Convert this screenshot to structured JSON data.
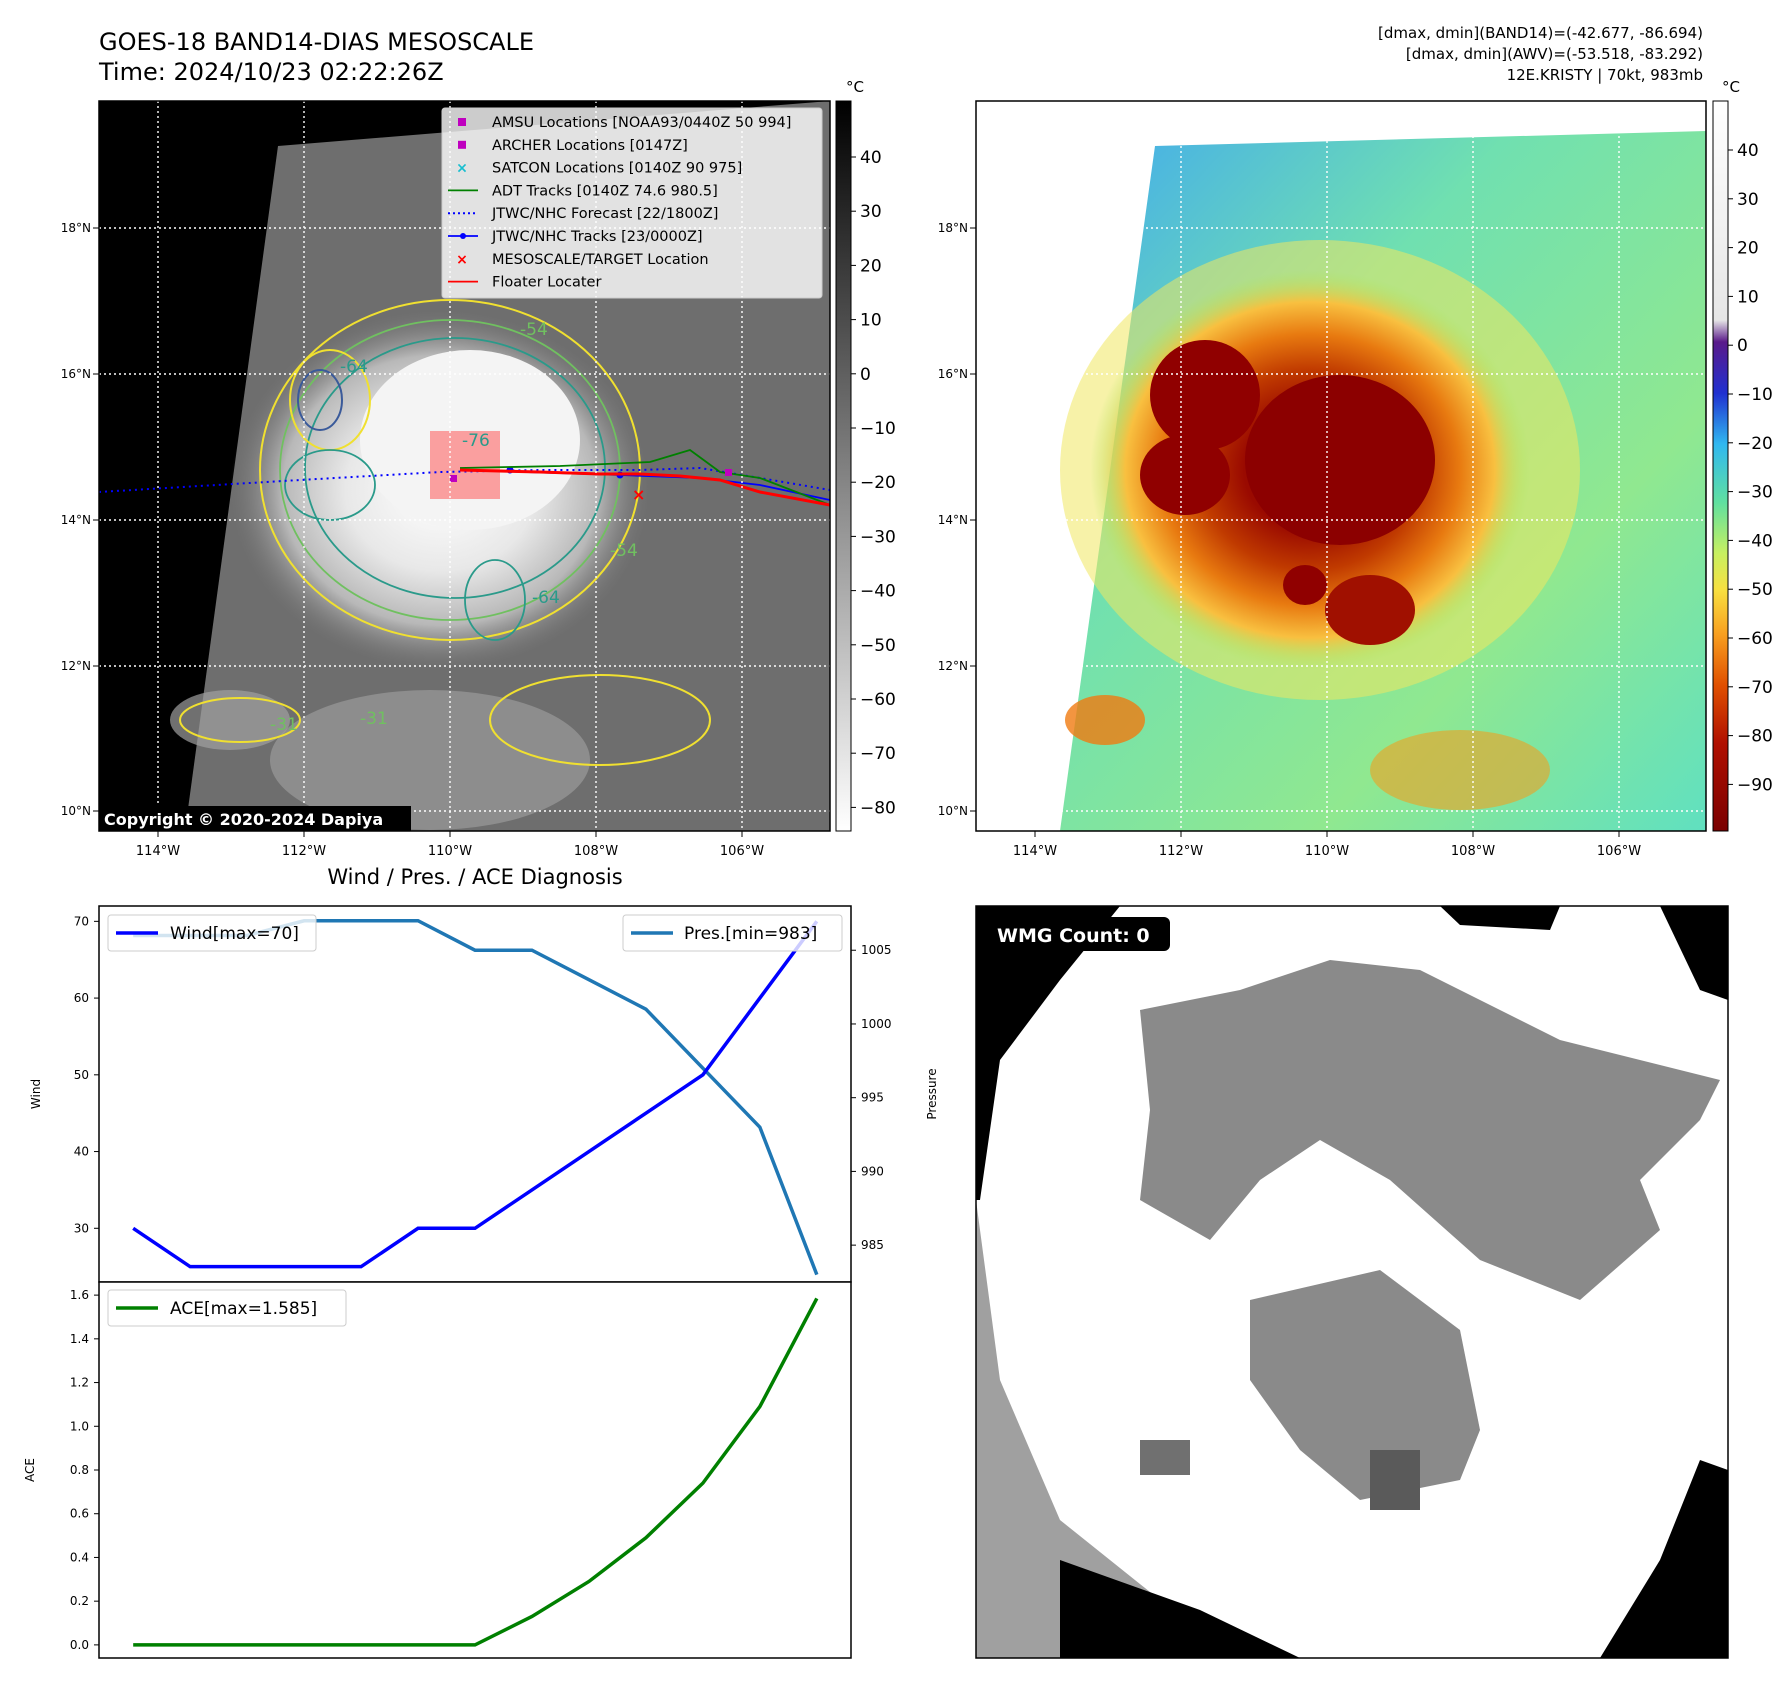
{
  "ir_panel": {
    "title_line1": "GOES-18 BAND14-DIAS MESOSCALE",
    "title_line2": "Time: 2024/10/23 02:22:26Z",
    "copyright": "Copyright © 2020-2024 Dapiya",
    "contour_labels": [
      "-76",
      "-54",
      "-54",
      "-64",
      "-64",
      "-31",
      "-31"
    ],
    "legend": [
      {
        "label": "AMSU Locations [NOAA93/0440Z 50 994]",
        "marker": "square",
        "color": "#bf00bf"
      },
      {
        "label": "ARCHER Locations [0147Z]",
        "marker": "square",
        "color": "#bf00bf"
      },
      {
        "label": "SATCON Locations [0140Z 90 975]",
        "marker": "x",
        "color": "#17becf"
      },
      {
        "label": "ADT Tracks [0140Z 74.6 980.5]",
        "marker": "line",
        "color": "#008000"
      },
      {
        "label": "JTWC/NHC Forecast [22/1800Z]",
        "marker": "dotted",
        "color": "#0000ff"
      },
      {
        "label": "JTWC/NHC Tracks [23/0000Z]",
        "marker": "line-dot",
        "color": "#0000ff"
      },
      {
        "label": "MESOSCALE/TARGET Location",
        "marker": "x",
        "color": "#ff0000"
      },
      {
        "label": "Floater Locater",
        "marker": "line",
        "color": "#ff0000"
      }
    ],
    "colorbar_unit": "°C",
    "colorbar_ticks": [
      "40",
      "30",
      "20",
      "10",
      "0",
      "−10",
      "−20",
      "−30",
      "−40",
      "−50",
      "−60",
      "−70",
      "−80"
    ],
    "lat_ticks": [
      "18°N",
      "16°N",
      "14°N",
      "12°N",
      "10°N"
    ],
    "lon_ticks": [
      "114°W",
      "112°W",
      "110°W",
      "108°W",
      "106°W"
    ]
  },
  "color_panel": {
    "header_line1": "[dmax, dmin](BAND14)=(-42.677, -86.694)",
    "header_line2": "[dmax, dmin](AWV)=(-53.518, -83.292)",
    "header_line3": "12E.KRISTY | 70kt, 983mb",
    "colorbar_unit": "°C",
    "colorbar_ticks": [
      "40",
      "30",
      "20",
      "10",
      "0",
      "−10",
      "−20",
      "−30",
      "−40",
      "−50",
      "−60",
      "−70",
      "−80",
      "−90"
    ],
    "lat_ticks": [
      "18°N",
      "16°N",
      "14°N",
      "12°N",
      "10°N"
    ],
    "lon_ticks": [
      "114°W",
      "112°W",
      "110°W",
      "108°W",
      "106°W"
    ]
  },
  "wmg_panel": {
    "label": "WMG Count: 0"
  },
  "chart_data": [
    {
      "type": "line",
      "title": "Wind / Pres. / ACE Diagnosis",
      "x": [
        0,
        1,
        2,
        3,
        4,
        5,
        6,
        7,
        8,
        9,
        10,
        11,
        12
      ],
      "series": [
        {
          "name": "Wind[max=70]",
          "axis": "left",
          "color": "#0000ff",
          "values": [
            30,
            25,
            25,
            25,
            25,
            30,
            30,
            35,
            40,
            45,
            50,
            60,
            70
          ]
        },
        {
          "name": "Pres.[min=983]",
          "axis": "right",
          "color": "#1f77b4",
          "values": [
            1006,
            1006,
            1006,
            1007,
            1007,
            1007,
            1005,
            1005,
            1003,
            1001,
            997,
            993,
            983
          ]
        }
      ],
      "ylabel": "Wind",
      "ylabel_right": "Pressure",
      "ylim": [
        23,
        72
      ],
      "ylim_right": [
        982.5,
        1008
      ],
      "yticks": [
        "70",
        "60",
        "50",
        "40",
        "30"
      ],
      "yticks_right": [
        "1005",
        "1000",
        "995",
        "990",
        "985"
      ],
      "legend_position": "top-left / top-right"
    },
    {
      "type": "line",
      "x": [
        0,
        1,
        2,
        3,
        4,
        5,
        6,
        7,
        8,
        9,
        10,
        11,
        12
      ],
      "series": [
        {
          "name": "ACE[max=1.585]",
          "color": "#008000",
          "values": [
            0,
            0,
            0,
            0,
            0,
            0,
            0,
            0.13,
            0.29,
            0.49,
            0.74,
            1.09,
            1.585
          ]
        }
      ],
      "ylabel": "ACE",
      "ylim": [
        -0.06,
        1.66
      ],
      "yticks": [
        "1.6",
        "1.4",
        "1.2",
        "1.0",
        "0.8",
        "0.6",
        "0.4",
        "0.2",
        "0.0"
      ],
      "legend_position": "top-left"
    }
  ]
}
